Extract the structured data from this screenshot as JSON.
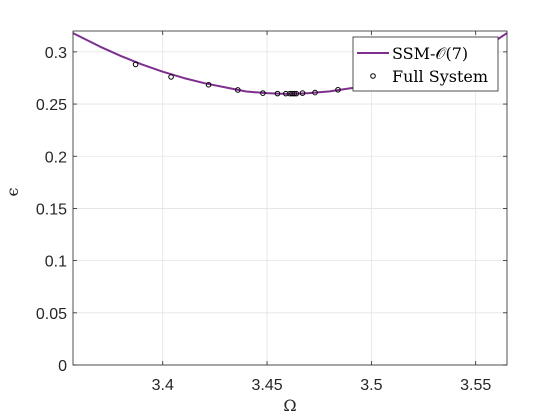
{
  "chart_data": {
    "type": "line",
    "xlabel": "Ω",
    "ylabel": "ϵ",
    "xlim": [
      3.357,
      3.565
    ],
    "ylim": [
      0,
      0.32
    ],
    "grid": true,
    "legend_position": "top-right",
    "x_ticks": [
      3.4,
      3.45,
      3.5,
      3.55
    ],
    "x_tick_labels": [
      "3.4",
      "3.45",
      "3.5",
      "3.55"
    ],
    "y_ticks": [
      0,
      0.05,
      0.1,
      0.15,
      0.2,
      0.25,
      0.3
    ],
    "y_tick_labels": [
      "0",
      "0.05",
      "0.1",
      "0.15",
      "0.2",
      "0.25",
      "0.3"
    ],
    "series": [
      {
        "name": "SSM-𝒪(7)",
        "kind": "line",
        "color": "#7e2f8e",
        "x": [
          3.357,
          3.37,
          3.38,
          3.39,
          3.4,
          3.41,
          3.42,
          3.43,
          3.44,
          3.45,
          3.455,
          3.46,
          3.465,
          3.47,
          3.48,
          3.49,
          3.5,
          3.51,
          3.52,
          3.53,
          3.54,
          3.55,
          3.565
        ],
        "y": [
          0.318,
          0.305,
          0.296,
          0.288,
          0.281,
          0.275,
          0.27,
          0.266,
          0.262,
          0.2605,
          0.26,
          0.2598,
          0.26,
          0.2605,
          0.2622,
          0.2652,
          0.268,
          0.2715,
          0.276,
          0.281,
          0.289,
          0.298,
          0.318
        ]
      },
      {
        "name": "Full System",
        "kind": "scatter",
        "color": "#000000",
        "x": [
          3.387,
          3.404,
          3.422,
          3.436,
          3.448,
          3.455,
          3.459,
          3.461,
          3.462,
          3.463,
          3.464,
          3.467,
          3.473,
          3.484
        ],
        "y": [
          0.288,
          0.276,
          0.2685,
          0.2635,
          0.2605,
          0.26,
          0.26,
          0.26,
          0.26,
          0.26,
          0.26,
          0.2605,
          0.261,
          0.2637
        ]
      }
    ]
  }
}
